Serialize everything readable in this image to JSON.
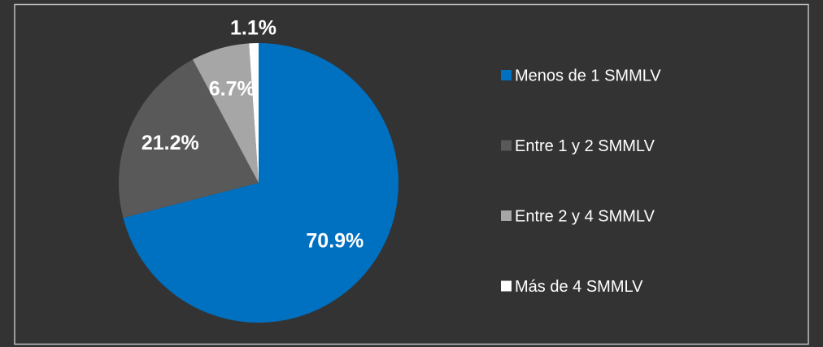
{
  "chart_data": {
    "type": "pie",
    "categories": [
      "Menos de 1 SMMLV",
      "Entre 1 y 2 SMMLV",
      "Entre 2 y 4 SMMLV",
      "Más de 4 SMMLV"
    ],
    "values": [
      70.9,
      21.2,
      6.7,
      1.1
    ],
    "value_labels": [
      "70.9%",
      "21.2%",
      "6.7%",
      "1.1%"
    ],
    "colors": [
      "#0070c0",
      "#595959",
      "#a6a6a6",
      "#ffffff"
    ],
    "legend": "right"
  }
}
